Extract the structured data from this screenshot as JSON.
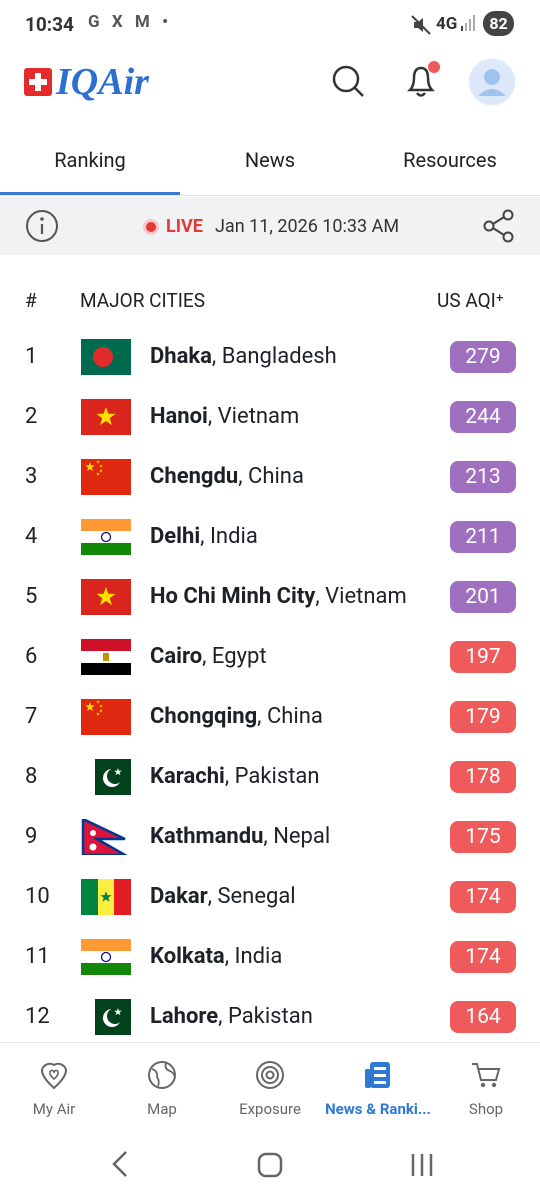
{
  "status_bar": {
    "time": "10:34",
    "network": "4G",
    "battery": "82"
  },
  "header": {
    "logo": "IQAir"
  },
  "tabs": [
    "Ranking",
    "News",
    "Resources"
  ],
  "live_bar": {
    "badge": "LIVE",
    "timestamp": "Jan 11, 2026 10:33 AM"
  },
  "table": {
    "columns": [
      "#",
      "MAJOR CITIES",
      "US AQI⁺"
    ],
    "rows": [
      {
        "rank": 1,
        "city": "Dhaka",
        "country": ", Bangladesh",
        "aqi": 279,
        "color": "#a070c0"
      },
      {
        "rank": 2,
        "city": "Hanoi",
        "country": ", Vietnam",
        "aqi": 244,
        "color": "#a070c0"
      },
      {
        "rank": 3,
        "city": "Chengdu",
        "country": ", China",
        "aqi": 213,
        "color": "#a070c0"
      },
      {
        "rank": 4,
        "city": "Delhi",
        "country": ", India",
        "aqi": 211,
        "color": "#a070c0"
      },
      {
        "rank": 5,
        "city": "Ho Chi Minh City",
        "country": ", Vietnam",
        "aqi": 201,
        "color": "#a070c0"
      },
      {
        "rank": 6,
        "city": "Cairo",
        "country": ", Egypt",
        "aqi": 197,
        "color": "#ef5b5b"
      },
      {
        "rank": 7,
        "city": "Chongqing",
        "country": ", China",
        "aqi": 179,
        "color": "#ef5b5b"
      },
      {
        "rank": 8,
        "city": "Karachi",
        "country": ", Pakistan",
        "aqi": 178,
        "color": "#ef5b5b"
      },
      {
        "rank": 9,
        "city": "Kathmandu",
        "country": ", Nepal",
        "aqi": 175,
        "color": "#ef5b5b"
      },
      {
        "rank": 10,
        "city": "Dakar",
        "country": ", Senegal",
        "aqi": 174,
        "color": "#ef5b5b"
      },
      {
        "rank": 11,
        "city": "Kolkata",
        "country": ", India",
        "aqi": 174,
        "color": "#ef5b5b"
      },
      {
        "rank": 12,
        "city": "Lahore",
        "country": ", Pakistan",
        "aqi": 164,
        "color": "#ef5b5b"
      }
    ]
  },
  "bottom_nav": [
    "My Air",
    "Map",
    "Exposure",
    "News & Ranki...",
    "Shop"
  ]
}
